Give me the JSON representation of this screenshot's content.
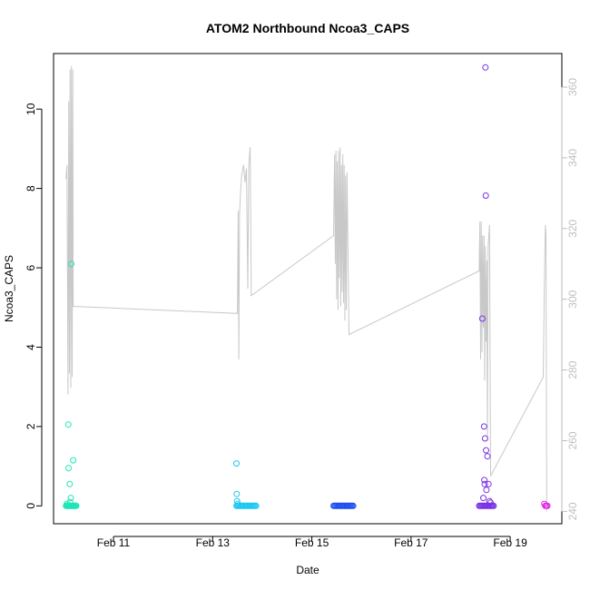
{
  "chart_data": {
    "type": "scatter",
    "title": "ATOM2 Northbound Ncoa3_CAPS",
    "xlabel": "Date",
    "ylabel": "Ncoa3_CAPS",
    "xlim": [
      "2024-02-09T19:00",
      "2024-02-20T01:00"
    ],
    "ylim": [
      -0.45,
      11.4
    ],
    "y_ticks": [
      0,
      2,
      4,
      6,
      8,
      10
    ],
    "x_ticks": [
      {
        "at": "2024-02-11T00:00",
        "label": "Feb 11"
      },
      {
        "at": "2024-02-13T00:00",
        "label": "Feb 13"
      },
      {
        "at": "2024-02-15T00:00",
        "label": "Feb 15"
      },
      {
        "at": "2024-02-17T00:00",
        "label": "Feb 17"
      },
      {
        "at": "2024-02-19T00:00",
        "label": "Feb 19"
      }
    ],
    "y2lim": [
      236.5,
      369.5
    ],
    "y2_ticks": [
      240,
      260,
      280,
      300,
      320,
      340,
      360
    ],
    "grid": false,
    "point_series": [
      {
        "color": "#1ee6b4",
        "points": [
          [
            "2024-02-10T01:00",
            0
          ],
          [
            "2024-02-10T01:20",
            0
          ],
          [
            "2024-02-10T01:40",
            0
          ],
          [
            "2024-02-10T02:00",
            0
          ],
          [
            "2024-02-10T02:20",
            0
          ],
          [
            "2024-02-10T02:40",
            0
          ],
          [
            "2024-02-10T03:00",
            0
          ],
          [
            "2024-02-10T03:20",
            0
          ],
          [
            "2024-02-10T03:40",
            0
          ],
          [
            "2024-02-10T04:00",
            0
          ],
          [
            "2024-02-10T04:20",
            0
          ],
          [
            "2024-02-10T04:40",
            0
          ],
          [
            "2024-02-10T05:00",
            0
          ],
          [
            "2024-02-10T05:20",
            0
          ],
          [
            "2024-02-10T05:40",
            0
          ],
          [
            "2024-02-10T06:00",
            0
          ],
          [
            "2024-02-10T01:30",
            0.05
          ],
          [
            "2024-02-10T02:10",
            2.05
          ],
          [
            "2024-02-10T02:15",
            0.95
          ],
          [
            "2024-02-10T02:50",
            0.55
          ],
          [
            "2024-02-10T03:20",
            0.2
          ],
          [
            "2024-02-10T03:35",
            6.1
          ],
          [
            "2024-02-10T04:30",
            1.15
          ],
          [
            "2024-02-10T03:00",
            0.1
          ]
        ]
      },
      {
        "color": "#1ec8f0",
        "points": [
          [
            "2024-02-13T11:30",
            1.07
          ],
          [
            "2024-02-13T11:40",
            0.3
          ],
          [
            "2024-02-13T11:50",
            0.12
          ],
          [
            "2024-02-13T12:10",
            0.05
          ],
          [
            "2024-02-13T11:30",
            0
          ],
          [
            "2024-02-13T12:00",
            0
          ],
          [
            "2024-02-13T12:30",
            0
          ],
          [
            "2024-02-13T13:00",
            0
          ],
          [
            "2024-02-13T13:30",
            0
          ],
          [
            "2024-02-13T14:00",
            0
          ],
          [
            "2024-02-13T14:30",
            0
          ],
          [
            "2024-02-13T15:00",
            0
          ],
          [
            "2024-02-13T15:30",
            0
          ],
          [
            "2024-02-13T16:00",
            0
          ],
          [
            "2024-02-13T16:30",
            0
          ],
          [
            "2024-02-13T17:00",
            0
          ],
          [
            "2024-02-13T17:30",
            0
          ],
          [
            "2024-02-13T18:00",
            0
          ],
          [
            "2024-02-13T18:30",
            0
          ],
          [
            "2024-02-13T19:00",
            0
          ],
          [
            "2024-02-13T19:30",
            0
          ],
          [
            "2024-02-13T20:00",
            0
          ],
          [
            "2024-02-13T20:30",
            0
          ],
          [
            "2024-02-13T21:00",
            0
          ]
        ]
      },
      {
        "color": "#1e50f0",
        "points": [
          [
            "2024-02-15T10:30",
            0
          ],
          [
            "2024-02-15T11:00",
            0
          ],
          [
            "2024-02-15T11:30",
            0
          ],
          [
            "2024-02-15T12:00",
            0
          ],
          [
            "2024-02-15T12:30",
            0
          ],
          [
            "2024-02-15T13:00",
            0
          ],
          [
            "2024-02-15T13:30",
            0
          ],
          [
            "2024-02-15T14:00",
            0
          ],
          [
            "2024-02-15T14:30",
            0
          ],
          [
            "2024-02-15T15:00",
            0
          ],
          [
            "2024-02-15T15:30",
            0
          ],
          [
            "2024-02-15T16:00",
            0
          ],
          [
            "2024-02-15T16:30",
            0
          ],
          [
            "2024-02-15T17:00",
            0
          ],
          [
            "2024-02-15T17:30",
            0
          ],
          [
            "2024-02-15T18:00",
            0
          ],
          [
            "2024-02-15T18:30",
            0
          ],
          [
            "2024-02-15T19:00",
            0
          ],
          [
            "2024-02-15T19:30",
            0
          ],
          [
            "2024-02-15T20:00",
            0
          ]
        ]
      },
      {
        "color": "#7832e6",
        "points": [
          [
            "2024-02-18T09:00",
            0
          ],
          [
            "2024-02-18T09:30",
            0
          ],
          [
            "2024-02-18T10:00",
            0
          ],
          [
            "2024-02-18T10:30",
            0
          ],
          [
            "2024-02-18T11:00",
            0
          ],
          [
            "2024-02-18T11:30",
            0
          ],
          [
            "2024-02-18T12:00",
            0
          ],
          [
            "2024-02-18T12:30",
            0
          ],
          [
            "2024-02-18T13:00",
            0
          ],
          [
            "2024-02-18T13:30",
            0
          ],
          [
            "2024-02-18T14:00",
            0
          ],
          [
            "2024-02-18T14:30",
            0
          ],
          [
            "2024-02-18T15:00",
            0
          ],
          [
            "2024-02-18T15:30",
            0
          ],
          [
            "2024-02-18T16:00",
            0
          ],
          [
            "2024-02-18T10:30",
            4.72
          ],
          [
            "2024-02-18T11:00",
            0.2
          ],
          [
            "2024-02-18T11:20",
            2.0
          ],
          [
            "2024-02-18T11:30",
            0.65
          ],
          [
            "2024-02-18T11:40",
            0.55
          ],
          [
            "2024-02-18T11:50",
            1.7
          ],
          [
            "2024-02-18T12:00",
            11.05
          ],
          [
            "2024-02-18T12:10",
            7.82
          ],
          [
            "2024-02-18T12:20",
            1.4
          ],
          [
            "2024-02-18T12:30",
            0.4
          ],
          [
            "2024-02-18T13:00",
            1.25
          ],
          [
            "2024-02-18T13:30",
            0.55
          ],
          [
            "2024-02-18T14:00",
            0.12
          ],
          [
            "2024-02-18T14:30",
            0.08
          ]
        ]
      },
      {
        "color": "#e61ee6",
        "points": [
          [
            "2024-02-19T16:30",
            0.05
          ],
          [
            "2024-02-19T17:00",
            0
          ],
          [
            "2024-02-19T17:30",
            0
          ],
          [
            "2024-02-19T18:00",
            0
          ]
        ]
      }
    ],
    "line_series": {
      "axis": "right",
      "color": "#c8c8c8",
      "points": [
        [
          "2024-02-10T01:00",
          334
        ],
        [
          "2024-02-10T01:30",
          338
        ],
        [
          "2024-02-10T02:00",
          273
        ],
        [
          "2024-02-10T02:20",
          356
        ],
        [
          "2024-02-10T02:40",
          279
        ],
        [
          "2024-02-10T03:00",
          365
        ],
        [
          "2024-02-10T03:20",
          275
        ],
        [
          "2024-02-10T03:40",
          366
        ],
        [
          "2024-02-10T04:00",
          278
        ],
        [
          "2024-02-10T04:20",
          365
        ],
        [
          "2024-02-10T04:30",
          298
        ],
        [
          "2024-02-13T12:00",
          296
        ],
        [
          "2024-02-13T12:20",
          325
        ],
        [
          "2024-02-13T12:40",
          283
        ],
        [
          "2024-02-13T13:00",
          324
        ],
        [
          "2024-02-13T13:30",
          330
        ],
        [
          "2024-02-13T14:00",
          335
        ],
        [
          "2024-02-13T15:00",
          338
        ],
        [
          "2024-02-13T15:40",
          333
        ],
        [
          "2024-02-13T16:20",
          337
        ],
        [
          "2024-02-13T17:00",
          303
        ],
        [
          "2024-02-13T17:30",
          338
        ],
        [
          "2024-02-13T18:10",
          343
        ],
        [
          "2024-02-13T18:40",
          301
        ],
        [
          "2024-02-15T10:30",
          318
        ],
        [
          "2024-02-15T11:00",
          341
        ],
        [
          "2024-02-15T11:20",
          310
        ],
        [
          "2024-02-15T11:40",
          342
        ],
        [
          "2024-02-15T12:00",
          300
        ],
        [
          "2024-02-15T12:20",
          339
        ],
        [
          "2024-02-15T12:40",
          297
        ],
        [
          "2024-02-15T13:00",
          342
        ],
        [
          "2024-02-15T13:20",
          306
        ],
        [
          "2024-02-15T13:40",
          343
        ],
        [
          "2024-02-15T14:00",
          298
        ],
        [
          "2024-02-15T14:20",
          338
        ],
        [
          "2024-02-15T14:40",
          302
        ],
        [
          "2024-02-15T15:00",
          341
        ],
        [
          "2024-02-15T15:20",
          299
        ],
        [
          "2024-02-15T15:40",
          338
        ],
        [
          "2024-02-15T16:00",
          294
        ],
        [
          "2024-02-15T16:20",
          335
        ],
        [
          "2024-02-15T16:40",
          297
        ],
        [
          "2024-02-15T17:00",
          336
        ],
        [
          "2024-02-15T18:00",
          290
        ],
        [
          "2024-02-18T09:00",
          308
        ],
        [
          "2024-02-18T09:20",
          322
        ],
        [
          "2024-02-18T09:40",
          283
        ],
        [
          "2024-02-18T10:00",
          322
        ],
        [
          "2024-02-18T10:20",
          285
        ],
        [
          "2024-02-18T10:40",
          318
        ],
        [
          "2024-02-18T11:00",
          292
        ],
        [
          "2024-02-18T11:20",
          318
        ],
        [
          "2024-02-18T11:40",
          277
        ],
        [
          "2024-02-18T12:00",
          315
        ],
        [
          "2024-02-18T12:20",
          288
        ],
        [
          "2024-02-18T12:40",
          311
        ],
        [
          "2024-02-18T13:00",
          260
        ],
        [
          "2024-02-18T13:20",
          315
        ],
        [
          "2024-02-18T14:00",
          321
        ],
        [
          "2024-02-18T14:30",
          250
        ],
        [
          "2024-02-19T16:00",
          278
        ],
        [
          "2024-02-19T16:30",
          304
        ],
        [
          "2024-02-19T17:00",
          321
        ],
        [
          "2024-02-19T17:20",
          318
        ],
        [
          "2024-02-19T17:40",
          240
        ]
      ]
    }
  }
}
